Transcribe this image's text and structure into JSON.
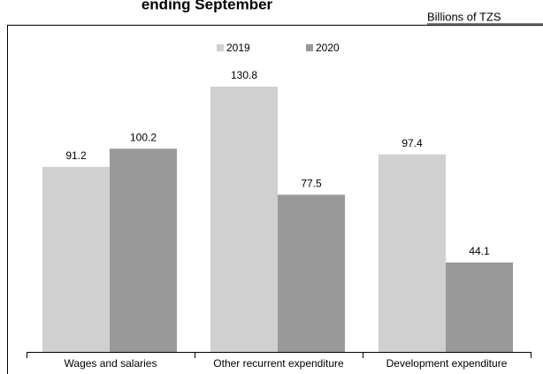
{
  "chart_data": {
    "type": "bar",
    "title": "ending September",
    "unit_label": "Billions of TZS",
    "categories": [
      "Wages and salaries",
      "Other recurrent expenditure",
      "Development expenditure"
    ],
    "series": [
      {
        "name": "2019",
        "color": "#d0d0d0",
        "values": [
          91.2,
          130.8,
          97.4
        ]
      },
      {
        "name": "2020",
        "color": "#999999",
        "values": [
          100.2,
          77.5,
          44.1
        ]
      }
    ],
    "legend": "top"
  }
}
